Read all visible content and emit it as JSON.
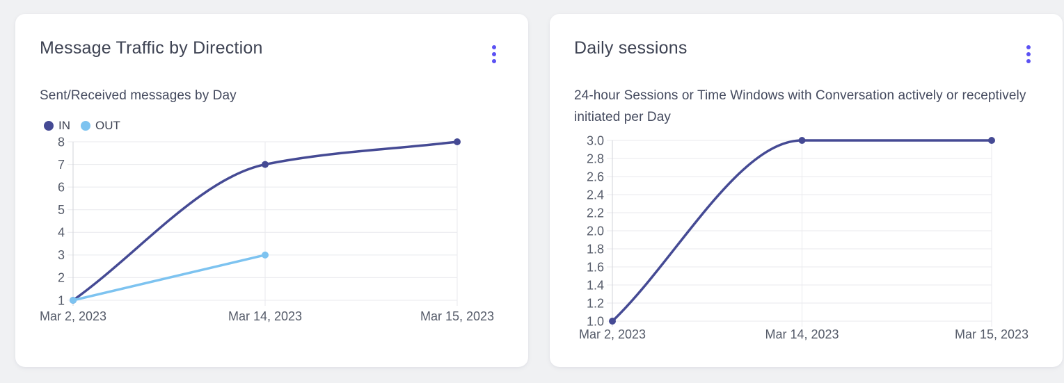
{
  "colors": {
    "accent": "#5b51f3",
    "page_background": "#f0f1f3",
    "card_background": "#ffffff",
    "title_text": "#3e4353",
    "subtitle_text": "#444a5e",
    "tick_text": "#555b69",
    "gridline": "#e8e9ed",
    "axis_line": "#d2d3d9",
    "series_in": "#454a94",
    "series_out": "#7dc3f0"
  },
  "cards": [
    {
      "title": "Message Traffic by Direction",
      "subtitle": "Sent/Received messages by Day",
      "menu_icon": "kebab-vertical-icon"
    },
    {
      "title": "Daily sessions",
      "subtitle": "24-hour Sessions or Time Windows with Conversation actively or receptively initiated per Day",
      "menu_icon": "kebab-vertical-icon"
    }
  ],
  "chart_data": [
    {
      "type": "line",
      "title": "Message Traffic by Direction",
      "subtitle": "Sent/Received messages by Day",
      "x": [
        "Mar 2, 2023",
        "Mar 14, 2023",
        "Mar 15, 2023"
      ],
      "series": [
        {
          "name": "IN",
          "color": "#454a94",
          "values": [
            1,
            7,
            8
          ]
        },
        {
          "name": "OUT",
          "color": "#7dc3f0",
          "values": [
            1,
            3,
            null
          ]
        }
      ],
      "ylim": [
        1,
        8
      ],
      "yticks": [
        1,
        2,
        3,
        4,
        5,
        6,
        7,
        8
      ],
      "y_decimals": 0,
      "grid": true,
      "legend": true,
      "legend_position": "top-left",
      "interpolation": "monotone"
    },
    {
      "type": "line",
      "title": "Daily sessions",
      "subtitle": "24-hour Sessions or Time Windows with Conversation actively or receptively initiated per Day",
      "x": [
        "Mar 2, 2023",
        "Mar 14, 2023",
        "Mar 15, 2023"
      ],
      "series": [
        {
          "name": "sessions",
          "color": "#454a94",
          "values": [
            1.0,
            3.0,
            3.0
          ]
        }
      ],
      "ylim": [
        1.0,
        3.0
      ],
      "yticks": [
        1.0,
        1.2,
        1.4,
        1.6,
        1.8,
        2.0,
        2.2,
        2.4,
        2.6,
        2.8,
        3.0
      ],
      "y_decimals": 1,
      "grid": true,
      "legend": false,
      "interpolation": "monotone"
    }
  ]
}
